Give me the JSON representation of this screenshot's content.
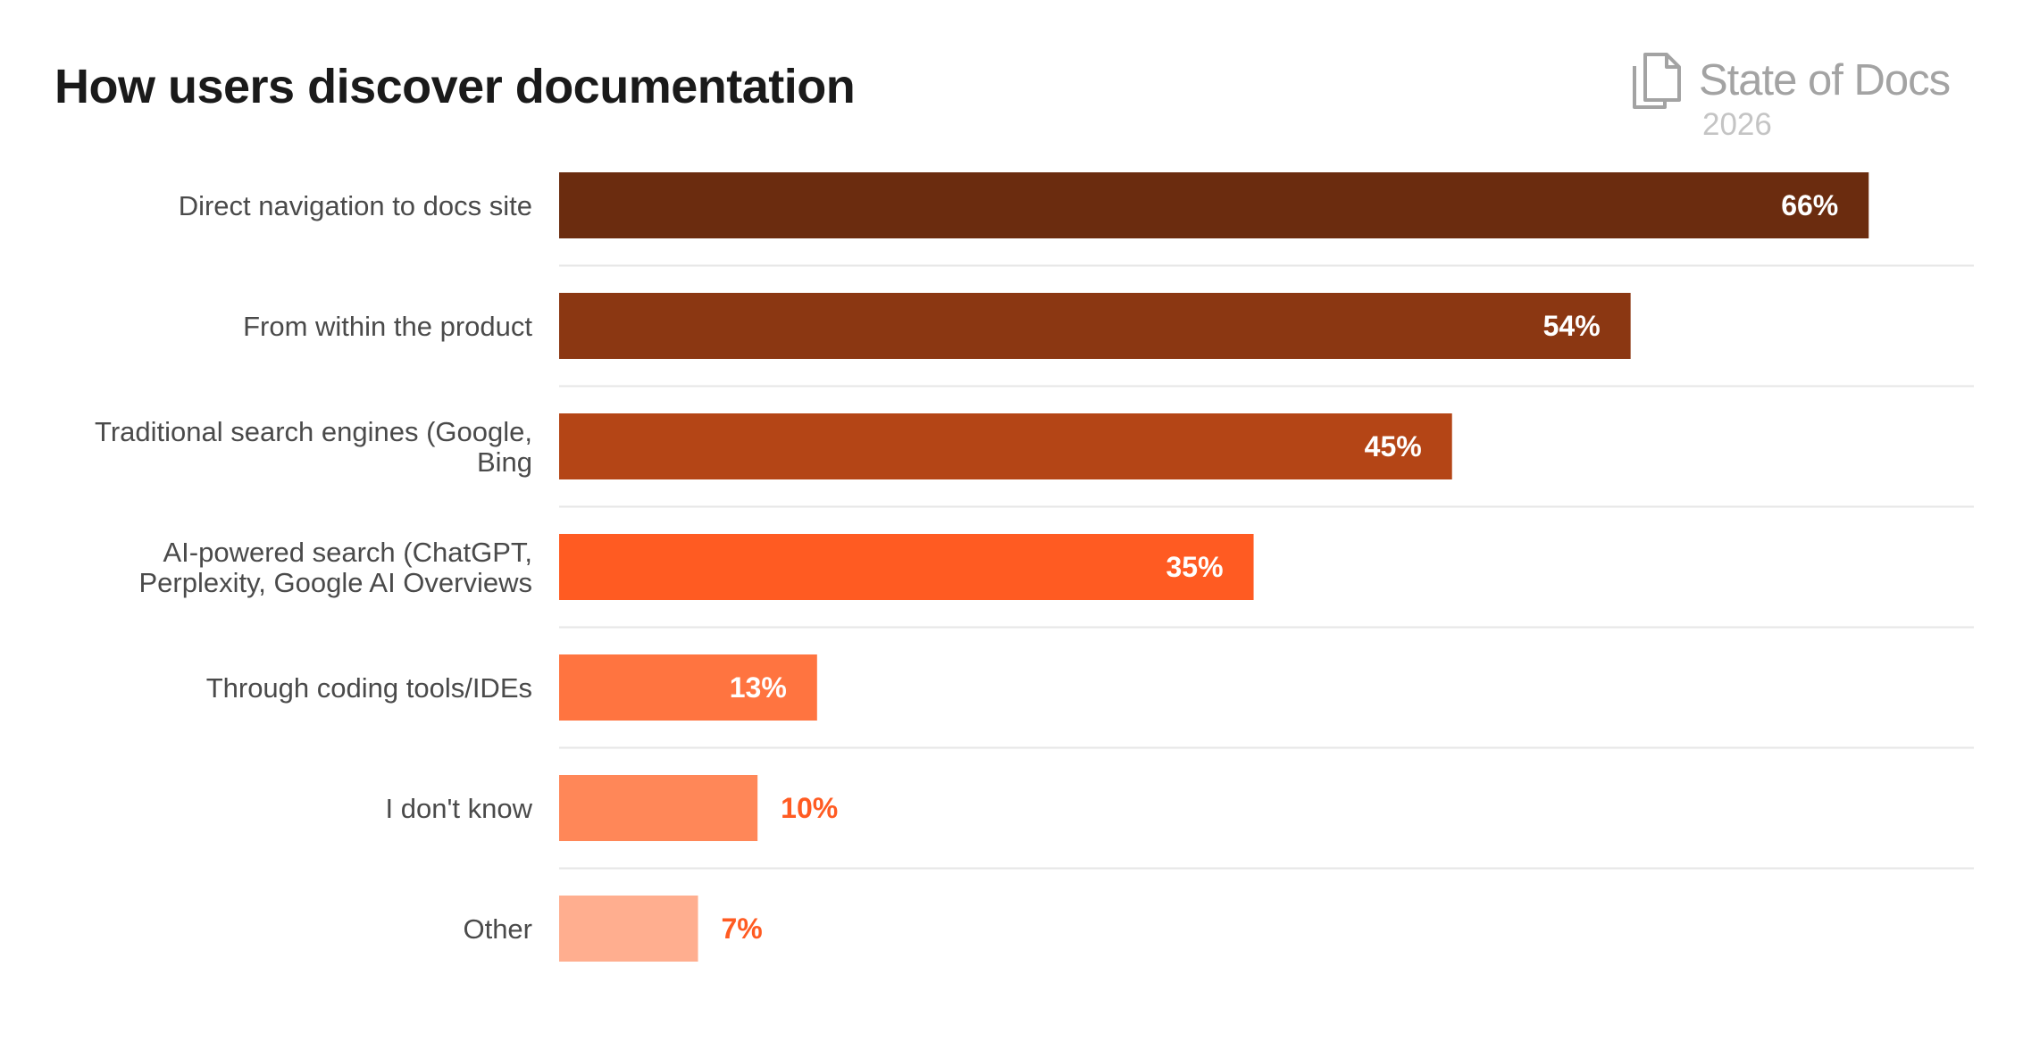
{
  "header": {
    "title": "How users discover documentation",
    "brand_name": "State of Docs",
    "brand_year": "2026"
  },
  "colors": {
    "bars": [
      "#6b2c0f",
      "#8b3712",
      "#b44516",
      "#ff5b22",
      "#ff7440",
      "#ff8758",
      "#ffae8f"
    ],
    "inside_label": "#ffffff",
    "outside_label": "#ff5b22",
    "category_label": "#4a4a4a",
    "separator": "#e6e6e6"
  },
  "chart_data": {
    "type": "bar",
    "orientation": "horizontal",
    "title": "How users discover documentation",
    "categories": [
      [
        "Direct navigation to docs site"
      ],
      [
        "From within the product"
      ],
      [
        "Traditional search engines (Google,",
        "Bing"
      ],
      [
        "AI-powered search (ChatGPT,",
        "Perplexity, Google AI Overviews"
      ],
      [
        "Through coding tools/IDEs"
      ],
      [
        "I don't know"
      ],
      [
        "Other"
      ]
    ],
    "values": [
      66,
      54,
      45,
      35,
      13,
      10,
      7
    ],
    "value_labels": [
      "66%",
      "54%",
      "45%",
      "35%",
      "13%",
      "10%",
      "7%"
    ],
    "unit": "%",
    "xlim": [
      0,
      71.3
    ],
    "label_inside_threshold": 13,
    "grid": false,
    "legend": "none"
  }
}
